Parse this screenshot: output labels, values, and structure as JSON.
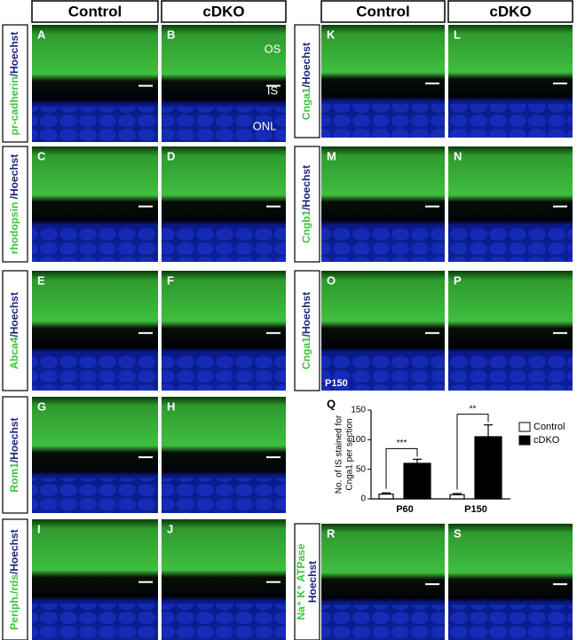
{
  "headers": [
    "Control",
    "cDKO",
    "Control",
    "cDKO"
  ],
  "panels": [
    "A",
    "B",
    "C",
    "D",
    "E",
    "F",
    "G",
    "H",
    "I",
    "J",
    "K",
    "L",
    "M",
    "N",
    "O",
    "P",
    "R",
    "S"
  ],
  "annotations": {
    "os": "OS",
    "is": "IS",
    "onl": "ONL",
    "timepoint": "P150"
  },
  "row_labels": [
    {
      "marker": "pr-cadherin",
      "stain": "/Hoechst"
    },
    {
      "marker": "rhodopsin ",
      "stain": "/Hoechst"
    },
    {
      "marker": "Abca4",
      "stain": "/Hoechst"
    },
    {
      "marker": "Rom1",
      "stain": "/Hoechst"
    },
    {
      "marker": "Periph./rds",
      "stain": "/Hoechst"
    },
    {
      "marker": "Cnga1",
      "stain": "/Hoechst"
    },
    {
      "marker": "Cngb1",
      "stain": "/Hoechst"
    },
    {
      "marker": "Cnga1",
      "stain": "/Hoechst"
    },
    {
      "marker": "Na⁺ K⁺ ATPase",
      "stain": "Hoechst"
    }
  ],
  "chart_data": {
    "type": "bar",
    "panel": "Q",
    "ylabel": [
      "No. of IS stained for",
      "Cnga1 per section"
    ],
    "categories": [
      "P60",
      "P150"
    ],
    "series": [
      {
        "name": "Control",
        "color": "#ffffff",
        "values": [
          8,
          7
        ],
        "errors": [
          2,
          2
        ]
      },
      {
        "name": "cDKO",
        "color": "#000000",
        "values": [
          60,
          105
        ],
        "errors": [
          7,
          20
        ]
      }
    ],
    "ylim": [
      0,
      150
    ],
    "yticks": [
      0,
      50,
      100,
      150
    ],
    "significance": [
      "***",
      "**"
    ]
  }
}
